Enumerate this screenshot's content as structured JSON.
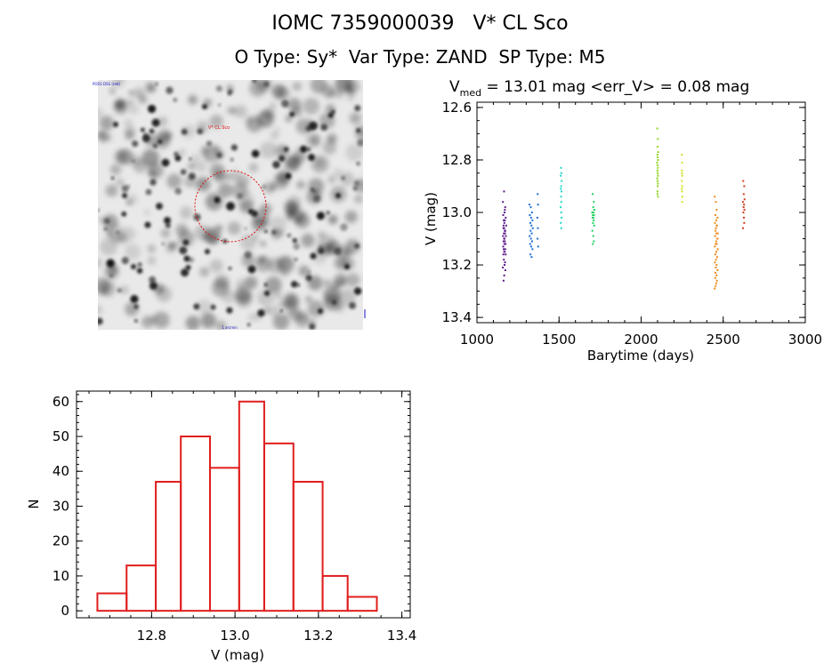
{
  "header": {
    "title": "IOMC 7359000039   V* CL Sco",
    "subtitle": "O Type: Sy*  Var Type: ZAND  SP Type: M5"
  },
  "chart_data": [
    {
      "type": "image",
      "description_label": "V* CL Sco",
      "annotation_labels": [
        "POSS DSS (red)",
        "1 arcmin"
      ]
    },
    {
      "type": "scatter",
      "title": "V_med = 13.01 mag <err_V> = 0.08 mag",
      "title_parts": {
        "v": "V",
        "sub": "med",
        "rest": " = 13.01 mag <err_V> = 0.08 mag"
      },
      "xlabel": "Barytime (days)",
      "ylabel": "V (mag)",
      "xlim": [
        1000,
        3000
      ],
      "ylim": [
        13.42,
        12.58
      ],
      "y_inverted": true,
      "xticks": [
        1000,
        1500,
        2000,
        2500,
        3000
      ],
      "yticks": [
        "12.6",
        "12.8",
        "13.0",
        "13.2",
        "13.4"
      ],
      "series": [
        {
          "color": "#5a1a8a",
          "x": [
            1165,
            1158,
            1172,
            1168,
            1160,
            1175,
            1163,
            1170,
            1167,
            1162,
            1178,
            1166,
            1161,
            1173,
            1169,
            1164,
            1171,
            1159,
            1176,
            1168,
            1165,
            1162,
            1170,
            1174,
            1167,
            1160,
            1163,
            1172,
            1166,
            1169,
            1161,
            1175,
            1164,
            1171,
            1168,
            1158,
            1173,
            1166,
            1162,
            1170
          ],
          "y": [
            12.92,
            12.96,
            12.98,
            13.0,
            13.01,
            13.02,
            13.03,
            13.03,
            13.04,
            13.05,
            13.05,
            13.06,
            13.06,
            13.07,
            13.07,
            13.08,
            13.08,
            13.09,
            13.09,
            13.1,
            13.1,
            13.11,
            13.11,
            13.12,
            13.12,
            13.13,
            13.14,
            13.14,
            13.15,
            13.15,
            13.16,
            13.16,
            13.18,
            13.19,
            13.2,
            13.21,
            13.22,
            13.24,
            13.26,
            12.99
          ]
        },
        {
          "color": "#1f6fd6",
          "x": [
            1320,
            1328,
            1335,
            1322,
            1330,
            1338,
            1325,
            1332,
            1340,
            1327,
            1334,
            1321,
            1329,
            1336,
            1324,
            1331,
            1338,
            1326,
            1333,
            1370,
            1372,
            1368,
            1371,
            1369,
            1373
          ],
          "y": [
            12.97,
            12.98,
            13.0,
            13.01,
            13.02,
            13.03,
            13.04,
            13.05,
            13.06,
            13.07,
            13.08,
            13.09,
            13.1,
            13.11,
            13.12,
            13.13,
            13.14,
            13.16,
            13.17,
            12.93,
            12.97,
            13.02,
            13.06,
            13.1,
            13.13
          ]
        },
        {
          "color": "#1fd6c8",
          "x": [
            1512,
            1514,
            1510,
            1516,
            1513,
            1511,
            1515,
            1512,
            1514,
            1510,
            1513,
            1515,
            1511,
            1514
          ],
          "y": [
            12.83,
            12.85,
            12.86,
            12.88,
            12.9,
            12.91,
            12.92,
            12.94,
            12.96,
            12.98,
            13.0,
            13.02,
            13.04,
            13.06
          ]
        },
        {
          "color": "#22d060",
          "x": [
            1705,
            1712,
            1708,
            1715,
            1702,
            1710,
            1706,
            1713,
            1709,
            1704,
            1711,
            1707,
            1714,
            1703,
            1709,
            1712,
            1706
          ],
          "y": [
            12.93,
            12.96,
            12.98,
            12.99,
            13.0,
            13.0,
            13.01,
            13.01,
            13.02,
            13.02,
            13.03,
            13.04,
            13.05,
            13.07,
            13.09,
            13.11,
            13.12
          ]
        },
        {
          "color": "#8ed61f",
          "x": [
            2098,
            2102,
            2100,
            2104,
            2099,
            2101,
            2103,
            2097,
            2100,
            2102,
            2099,
            2101,
            2103,
            2098,
            2100,
            2102,
            2101,
            2099,
            2100,
            2103
          ],
          "y": [
            12.68,
            12.72,
            12.75,
            12.77,
            12.78,
            12.79,
            12.8,
            12.81,
            12.82,
            12.83,
            12.84,
            12.85,
            12.86,
            12.87,
            12.88,
            12.89,
            12.9,
            12.92,
            12.93,
            12.94
          ]
        },
        {
          "color": "#d6df1f",
          "x": [
            2248,
            2250,
            2249,
            2251,
            2248,
            2250,
            2249,
            2251,
            2250,
            2248,
            2249
          ],
          "y": [
            12.78,
            12.81,
            12.84,
            12.86,
            12.88,
            12.9,
            12.92,
            12.94,
            12.96,
            12.91,
            12.85
          ]
        },
        {
          "color": "#f08a1c",
          "x": [
            2448,
            2455,
            2460,
            2452,
            2465,
            2458,
            2450,
            2462,
            2456,
            2453,
            2467,
            2459,
            2451,
            2464,
            2457,
            2454,
            2461,
            2449,
            2466,
            2458,
            2452,
            2463,
            2456,
            2450,
            2460,
            2455,
            2465,
            2453,
            2459,
            2451,
            2462,
            2457,
            2454,
            2448,
            2466,
            2460
          ],
          "y": [
            12.94,
            12.96,
            12.99,
            13.01,
            13.02,
            13.03,
            13.04,
            13.05,
            13.06,
            13.07,
            13.08,
            13.08,
            13.09,
            13.1,
            13.11,
            13.12,
            13.12,
            13.13,
            13.14,
            13.15,
            13.16,
            13.17,
            13.18,
            13.19,
            13.2,
            13.21,
            13.22,
            13.23,
            13.24,
            13.25,
            13.26,
            13.27,
            13.28,
            13.29,
            13.1,
            13.05
          ]
        },
        {
          "color": "#d63a1f",
          "x": [
            2622,
            2628,
            2625,
            2630,
            2620,
            2627,
            2624,
            2629,
            2623,
            2626,
            2628,
            2621
          ],
          "y": [
            12.88,
            12.9,
            12.93,
            12.95,
            12.96,
            12.97,
            12.98,
            12.99,
            13.0,
            13.02,
            13.04,
            13.06
          ]
        }
      ]
    },
    {
      "type": "histogram",
      "xlabel": "V (mag)",
      "ylabel": "N",
      "xlim": [
        12.62,
        13.42
      ],
      "ylim": [
        -2,
        63
      ],
      "xticks": [
        "12.8",
        "13.0",
        "13.2",
        "13.4"
      ],
      "yticks": [
        "0",
        "10",
        "20",
        "30",
        "40",
        "50",
        "60"
      ],
      "bin_edges": [
        12.67,
        12.74,
        12.81,
        12.87,
        12.94,
        13.01,
        13.07,
        13.14,
        13.21,
        13.27,
        13.34
      ],
      "values": [
        5,
        13,
        37,
        50,
        41,
        60,
        48,
        37,
        10,
        4
      ],
      "bar_color": "#e01e1e"
    }
  ]
}
